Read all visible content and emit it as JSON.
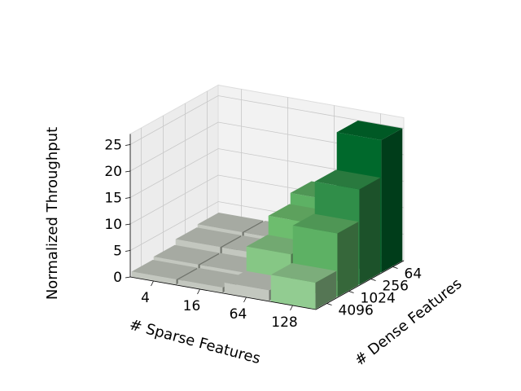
{
  "chart_data": {
    "type": "bar3d",
    "xlabel": "# Sparse Features",
    "ylabel": "# Dense Features",
    "zlabel": "Normalized Throughput",
    "x_categories": [
      "4",
      "16",
      "64",
      "128"
    ],
    "y_categories": [
      "64",
      "256",
      "1024",
      "4096"
    ],
    "zlim": [
      0,
      27
    ],
    "z_ticks": [
      "0",
      "5",
      "10",
      "15",
      "20",
      "25"
    ],
    "grid": true,
    "colormap": "greens",
    "values": [
      {
        "sparse": "4",
        "dense": "64",
        "value": 3.0
      },
      {
        "sparse": "4",
        "dense": "256",
        "value": 2.5
      },
      {
        "sparse": "4",
        "dense": "1024",
        "value": 1.5
      },
      {
        "sparse": "4",
        "dense": "4096",
        "value": 1.0
      },
      {
        "sparse": "16",
        "dense": "64",
        "value": 3.0
      },
      {
        "sparse": "16",
        "dense": "256",
        "value": 2.5
      },
      {
        "sparse": "16",
        "dense": "1024",
        "value": 1.5
      },
      {
        "sparse": "16",
        "dense": "4096",
        "value": 1.0
      },
      {
        "sparse": "64",
        "dense": "64",
        "value": 12.0
      },
      {
        "sparse": "64",
        "dense": "256",
        "value": 10.0
      },
      {
        "sparse": "64",
        "dense": "1024",
        "value": 6.5
      },
      {
        "sparse": "64",
        "dense": "4096",
        "value": 2.0
      },
      {
        "sparse": "128",
        "dense": "64",
        "value": 25.0
      },
      {
        "sparse": "128",
        "dense": "256",
        "value": 18.0
      },
      {
        "sparse": "128",
        "dense": "1024",
        "value": 12.0
      },
      {
        "sparse": "128",
        "dense": "4096",
        "value": 5.0
      }
    ]
  }
}
